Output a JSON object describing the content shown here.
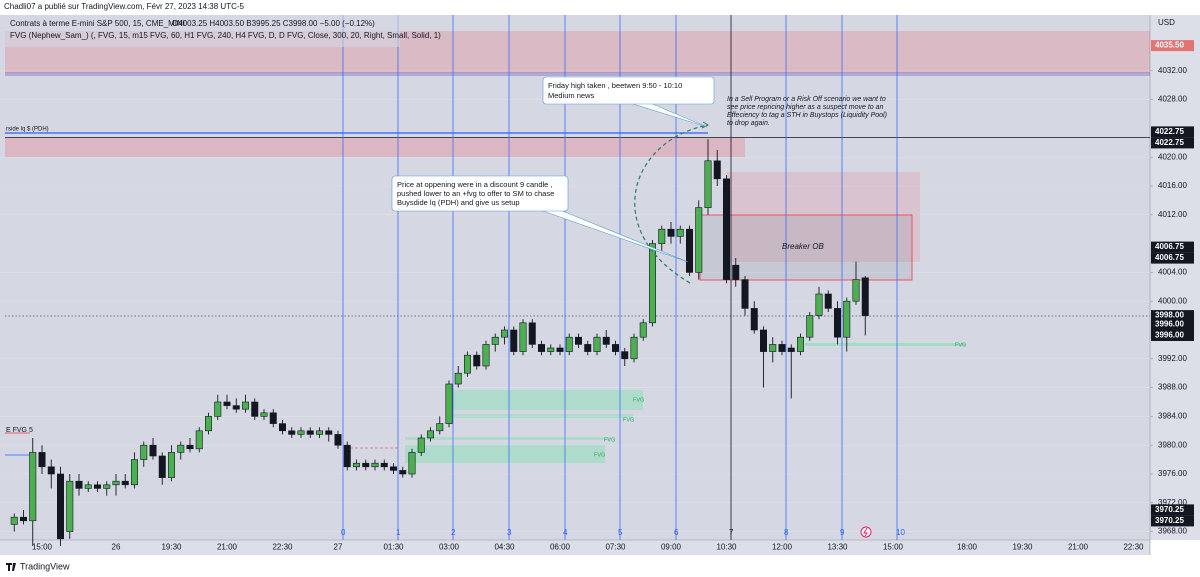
{
  "header": {
    "published": "Chadli07 a publié sur TradingView.com, Févr 27, 2023 14:38 UTC-5",
    "footer": "TradingView"
  },
  "chart_data": {
    "type": "candlestick",
    "title": "Contrats à terme E-mini S&P 500, 15, CME_MINI",
    "ohlc_legend": "O4003.25 H4003.50 B3995.25 C3998.00 −5.00 (−0.12%)",
    "indicator": "FVG (Nephew_Sam_) (, FVG, 15, m15 FVG, 60, H1 FVG, 240, H4 FVG, D, D FVG, Close, 300, 20, Right, Small, Solid, 1)",
    "currency": "USD",
    "up_color": "#4caf50",
    "down_color": "#131722",
    "grid": true,
    "ylim": [
      3967,
      4039.75
    ],
    "yticks": [
      {
        "value": 4032,
        "label": "4032.00"
      },
      {
        "value": 4028,
        "label": "4028.00"
      },
      {
        "value": 4020,
        "label": "4020.00"
      },
      {
        "value": 4016,
        "label": "4016.00"
      },
      {
        "value": 4012,
        "label": "4012.00"
      },
      {
        "value": 4004,
        "label": "4004.00"
      },
      {
        "value": 4000,
        "label": "4000.00"
      },
      {
        "value": 3992,
        "label": "3992.00"
      },
      {
        "value": 3988,
        "label": "3988.00"
      },
      {
        "value": 3984,
        "label": "3984.00"
      },
      {
        "value": 3980,
        "label": "3980.00"
      },
      {
        "value": 3976,
        "label": "3976.00"
      },
      {
        "value": 3972,
        "label": "3972.00"
      },
      {
        "value": 3968,
        "label": "3968.00"
      }
    ],
    "price_labels": [
      {
        "value": 4035.5,
        "label": "4035.50",
        "color": "#e57373"
      },
      {
        "value": 4022.75,
        "label": "4022.75",
        "color": "#131722"
      },
      {
        "value": 4022.75,
        "label": "4022.75",
        "color": "#131722"
      },
      {
        "value": 4006.75,
        "label": "4006.75",
        "color": "#131722"
      },
      {
        "value": 4006.75,
        "label": "4006.75",
        "color": "#131722"
      },
      {
        "value": 3998,
        "label": "3998.00",
        "color": "#131722"
      },
      {
        "value": 3996,
        "label": "3996.00",
        "color": "#131722"
      },
      {
        "value": 3996,
        "label": "3996.00",
        "color": "#131722"
      },
      {
        "value": 3970.25,
        "label": "3970.25",
        "color": "#131722"
      },
      {
        "value": 3970.25,
        "label": "3970.25",
        "color": "#131722"
      }
    ],
    "categories": [
      null,
      null,
      null,
      "15:00",
      null,
      null,
      null,
      null,
      null,
      null,
      null,
      "26",
      null,
      null,
      null,
      null,
      null,
      "19:30",
      null,
      null,
      null,
      null,
      null,
      "21:00",
      null,
      null,
      null,
      null,
      null,
      "22:30",
      null,
      null,
      null,
      null,
      null,
      "27",
      null,
      null,
      null,
      null,
      null,
      "01:30",
      null,
      null,
      null,
      null,
      null,
      "03:00",
      null,
      null,
      null,
      null,
      null,
      "04:30",
      null,
      null,
      null,
      null,
      null,
      "06:00",
      null,
      null,
      null,
      null,
      null,
      "07:30",
      null,
      null,
      null,
      null,
      null,
      "09:00",
      null,
      null,
      null,
      null,
      null,
      "10:30",
      null,
      null,
      null,
      null,
      null,
      "12:00",
      null,
      null,
      null,
      null,
      null,
      "13:30",
      null,
      null,
      null,
      null,
      null,
      "15:00",
      null,
      null,
      null,
      null,
      null,
      null,
      null,
      "18:00",
      null,
      null,
      null,
      null,
      null,
      "19:30",
      null,
      null,
      null,
      null,
      null,
      "21:00",
      null,
      null,
      null,
      null,
      null,
      "22:30",
      null,
      null
    ],
    "open": [
      3969,
      3970,
      3969.5,
      3979,
      3977,
      3976,
      3968,
      3975,
      3974,
      3974.5,
      3974,
      3974.5,
      3975,
      3974.5,
      3978,
      3980,
      3978.5,
      3975.5,
      3979,
      3980,
      3979.5,
      3982,
      3984,
      3986,
      3985.5,
      3985,
      3986,
      3984,
      3984.5,
      3983,
      3982,
      3981.5,
      3982,
      3981.5,
      3982,
      3981.5,
      3980,
      3977,
      3977.5,
      3977,
      3977.5,
      3977,
      3976.5,
      3976,
      3979,
      3981,
      3982,
      3983,
      3988.5,
      3990,
      3992.5,
      3991,
      3994,
      3995,
      3996,
      3993,
      3997,
      3994,
      3993,
      3993.5,
      3993,
      3995,
      3994,
      3993,
      3995,
      3994,
      3993,
      3992,
      3995,
      3997,
      4008,
      4010,
      4009,
      4010,
      4004,
      4013,
      4019.5,
      4017,
      4005,
      4003,
      3999,
      3996,
      3993,
      3994,
      3993.5,
      3993,
      3995,
      3998,
      4001,
      3999,
      3995,
      4000,
      4003.25,
      null,
      null,
      null,
      null,
      null,
      null,
      null,
      null,
      null,
      null,
      null,
      null,
      null,
      null,
      null,
      null,
      null,
      null,
      null,
      null,
      null,
      null,
      null,
      null,
      null,
      null,
      null,
      null,
      null,
      null,
      null
    ],
    "high": [
      3970.5,
      3971,
      3981,
      3980,
      3978,
      3977,
      3976,
      3976,
      3975,
      3975,
      3975,
      3976,
      3976,
      3979,
      3980.5,
      3981,
      3979,
      3980,
      3980.5,
      3981,
      3982.5,
      3984.5,
      3987,
      3987,
      3986.5,
      3987,
      3986.5,
      3985,
      3985,
      3983.5,
      3982.5,
      3982.5,
      3982.5,
      3982.5,
      3982.5,
      3982,
      3980.5,
      3978,
      3978,
      3978,
      3978,
      3977.5,
      3977,
      3979.5,
      3981.5,
      3982.5,
      3984,
      3989,
      3991,
      3993,
      3993,
      3994.5,
      3995.5,
      3996.5,
      3996.5,
      3997.5,
      3997.5,
      3994.5,
      3994,
      3994,
      3995.5,
      3995.5,
      3994.5,
      3995.5,
      3996,
      3994.5,
      3993.5,
      3995.5,
      3997.5,
      4008.5,
      4010.5,
      4011,
      4010.5,
      4010.5,
      4014,
      4022.5,
      4021,
      4017.5,
      4006,
      4003.5,
      4000,
      3996.5,
      3995,
      3994.5,
      3994,
      3995.5,
      3998.5,
      4002,
      4001.5,
      4000,
      4000.5,
      4005.5,
      4003.5,
      null,
      null,
      null,
      null,
      null,
      null,
      null,
      null,
      null,
      null,
      null,
      null,
      null,
      null,
      null,
      null,
      null,
      null,
      null,
      null,
      null,
      null,
      null,
      null,
      null,
      null,
      null,
      null,
      null,
      null,
      null
    ],
    "low": [
      3968,
      3969,
      3966,
      3976,
      3974,
      3966,
      3967,
      3973,
      3973.5,
      3973.5,
      3973,
      3973,
      3974,
      3974,
      3977,
      3978,
      3974.5,
      3975,
      3978,
      3979,
      3979,
      3981.5,
      3983.5,
      3985,
      3984.5,
      3984.5,
      3983.5,
      3983.5,
      3982.5,
      3981.5,
      3981,
      3981,
      3981,
      3981,
      3980.5,
      3979.5,
      3976.5,
      3976.5,
      3976.5,
      3976.5,
      3976.5,
      3976,
      3975.5,
      3975.5,
      3978.5,
      3980.5,
      3981.5,
      3982.5,
      3988,
      3989.5,
      3990.5,
      3990.5,
      3993,
      3994,
      3992.5,
      3992.5,
      3993.5,
      3992.5,
      3992.5,
      3992.5,
      3992.5,
      3993.5,
      3992.5,
      3992.5,
      3993.5,
      3992.5,
      3991,
      3991.5,
      3994.5,
      3996.5,
      4007,
      4008,
      4008,
      4003.5,
      4003,
      4012,
      4016,
      4002.5,
      4002,
      3998,
      3995.5,
      3988,
      3991.5,
      3992.5,
      3986.5,
      3992.5,
      3994.5,
      3997.5,
      3998.5,
      3994,
      3993,
      3999.5,
      3995.25,
      null,
      null,
      null,
      null,
      null,
      null,
      null,
      null,
      null,
      null,
      null,
      null,
      null,
      null,
      null,
      null,
      null,
      null,
      null,
      null,
      null,
      null,
      null,
      null,
      null,
      null,
      null,
      null,
      null,
      null,
      null
    ],
    "close": [
      3970,
      3969.5,
      3979,
      3977,
      3976,
      3967,
      3975,
      3974,
      3974.5,
      3974,
      3974.5,
      3975,
      3974.5,
      3978,
      3980,
      3978.5,
      3975.5,
      3979,
      3980,
      3979.5,
      3982,
      3984,
      3986,
      3985.5,
      3985,
      3986,
      3984,
      3984.5,
      3983,
      3982,
      3981.5,
      3982,
      3981.5,
      3982,
      3981.5,
      3980,
      3977,
      3977.5,
      3977,
      3977.5,
      3977,
      3976.5,
      3976,
      3979,
      3981,
      3982,
      3983,
      3988.5,
      3990,
      3992.5,
      3991,
      3994,
      3995,
      3996,
      3993,
      3997,
      3994,
      3993,
      3993.5,
      3993,
      3995,
      3994,
      3993,
      3995,
      3994,
      3993,
      3992,
      3995,
      3997,
      4008,
      4010,
      4009,
      4010,
      4004,
      4013,
      4019.5,
      4017,
      4003,
      4003,
      3999,
      3996,
      3993,
      3994,
      3993,
      3993,
      3995,
      3998,
      4001,
      3999,
      3995,
      4000,
      4003,
      3998,
      null,
      null,
      null,
      null,
      null,
      null,
      null,
      null,
      null,
      null,
      null,
      null,
      null,
      null,
      null,
      null,
      null,
      null,
      null,
      null,
      null,
      null,
      null,
      null,
      null,
      null,
      null,
      null,
      null,
      null,
      null
    ],
    "session_labels": [
      "0",
      "1",
      "2",
      "3",
      "4",
      "5",
      "6",
      "7",
      "8",
      "9",
      "10"
    ],
    "annotations": {
      "friday_high": [
        "Friday high taken , beetwen 9:50 - 10:10",
        "Medium news"
      ],
      "sell_program": [
        "In a Sell Program or a Risk Off scenario we want to",
        " see price repricing higher as a suspect move to an",
        " Effeciency to tag a STH in Buystops (Liquidity Pool)",
        " to drop again."
      ],
      "opening": [
        "Price at oppening were in a discount 9 candle ,",
        " pushed lower to an +fvg to offer to SM to chase",
        "Buysdide lq (PDH) and give us setup"
      ],
      "breaker": "Breaker OB",
      "pdh": "rside lq $ (PDH)",
      "fvg_left": "E FVG 5",
      "fvg_labels": [
        "FVG",
        "FVG",
        "FVG",
        "FVG",
        "FVG"
      ]
    }
  }
}
